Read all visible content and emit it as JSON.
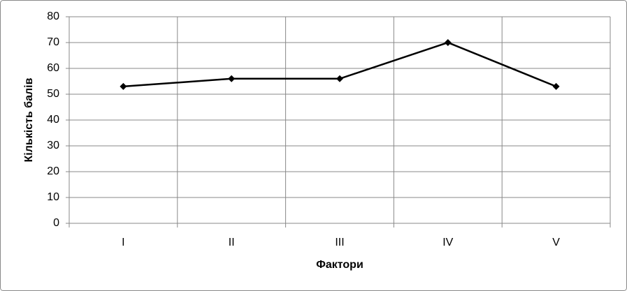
{
  "chart_data": {
    "type": "line",
    "x_label": "Фактори",
    "y_label": "Кількість балів",
    "categories": [
      "I",
      "II",
      "III",
      "IV",
      "V"
    ],
    "values": [
      53,
      56,
      56,
      70,
      53
    ],
    "color": "#000000",
    "ylim": [
      0,
      80
    ],
    "yticks": [
      0,
      10,
      20,
      30,
      40,
      50,
      60,
      70,
      80
    ],
    "grid": true
  }
}
